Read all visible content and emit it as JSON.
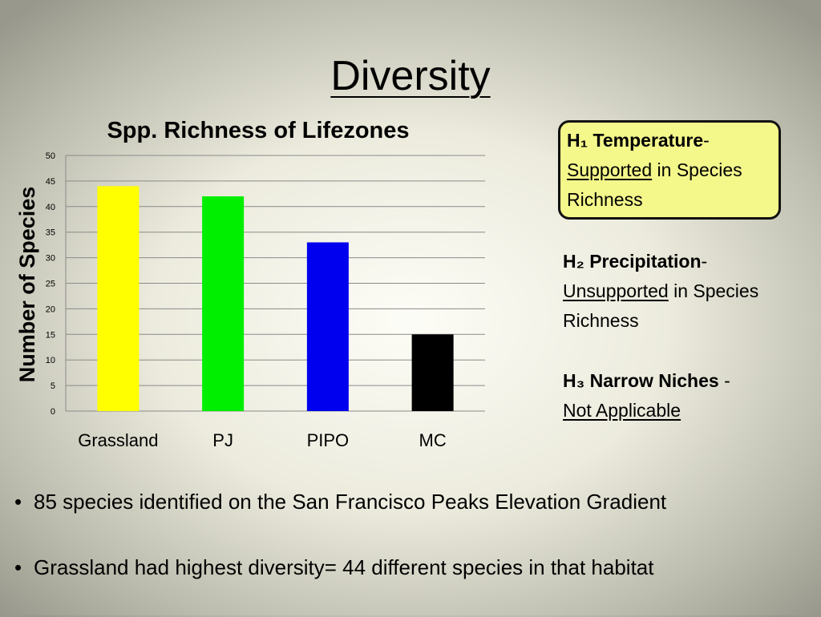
{
  "slide": {
    "title": "Diversity"
  },
  "chart_data": {
    "type": "bar",
    "title": "Spp. Richness of Lifezones",
    "xlabel": "",
    "ylabel": "Number of Species",
    "categories": [
      "Grassland",
      "PJ",
      "PIPO",
      "MC"
    ],
    "values": [
      44,
      42,
      33,
      15
    ],
    "bar_colors": [
      "#ffff00",
      "#00ee00",
      "#0000ee",
      "#000000"
    ],
    "ylim": [
      0,
      50
    ],
    "yticks": [
      0,
      5,
      10,
      15,
      20,
      25,
      30,
      35,
      40,
      45,
      50
    ],
    "grid": true,
    "legend": "none"
  },
  "hypotheses": [
    {
      "label": "H₁ Temperature",
      "sep": "-",
      "status": "Supported",
      "rest": "in Species Richness",
      "highlight": "#f4f78a"
    },
    {
      "label": "H₂ Precipitation",
      "sep": "-",
      "status": "Unsupported",
      "rest": "in Species Richness"
    },
    {
      "label": "H₃ Narrow Niches",
      "sep": " -",
      "status": "Not Applicable",
      "rest": ""
    }
  ],
  "bullets": {
    "symbol": "•",
    "items": [
      "85 species identified on the San Francisco Peaks Elevation Gradient",
      "Grassland had highest diversity= 44 different species in that habitat"
    ]
  }
}
